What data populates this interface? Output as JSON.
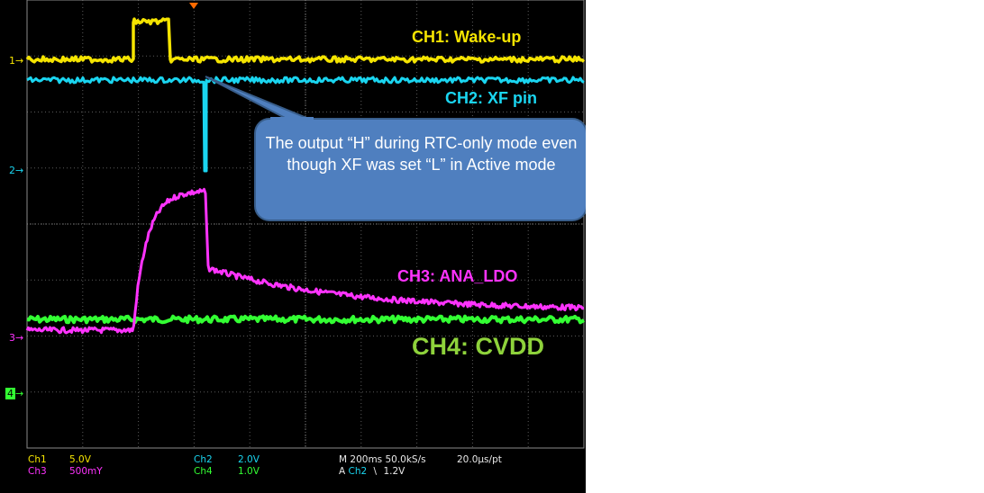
{
  "chart_data": {
    "type": "line",
    "series": [
      {
        "name": "CH1: Wake-up",
        "color": "#f5e400"
      },
      {
        "name": "CH2: XF pin",
        "color": "#1ad5f0"
      },
      {
        "name": "CH3: ANA_LDO",
        "color": "#ff33ff"
      },
      {
        "name": "CH4: CVDD",
        "color": "#33ff33"
      }
    ],
    "grid": true
  },
  "channel_labels": {
    "ch1": "CH1: Wake-up",
    "ch2": "CH2: XF pin",
    "ch3": "CH3: ANA_LDO",
    "ch4": "CH4: CVDD"
  },
  "callout": "The output  “H” during RTC-only mode even though XF was set “L” in Active mode",
  "ground_markers": {
    "m1": "1",
    "m2": "2",
    "m3": "3",
    "m4": "4"
  },
  "scale_readouts": {
    "ch1_name": "Ch1",
    "ch1_scale": "5.0V",
    "ch3_name": "Ch3",
    "ch3_scale": "500mY",
    "ch2_name": "Ch2",
    "ch2_scale": "2.0V",
    "ch4_name": "Ch4",
    "ch4_scale": "1.0V",
    "timebase": "M 200ms 50.0kS/s",
    "sample_interval": "20.0µs/pt",
    "trigger_prefix": "A",
    "trigger_source": "Ch2",
    "trigger_slope": "\\",
    "trigger_level": "1.2V"
  },
  "colors": {
    "ch1": "#f5e400",
    "ch2": "#1ad5f0",
    "ch3": "#ff33ff",
    "ch4": "#33ff33",
    "callout_fill": "#4f7fbf",
    "callout_stroke": "#385d8a"
  }
}
